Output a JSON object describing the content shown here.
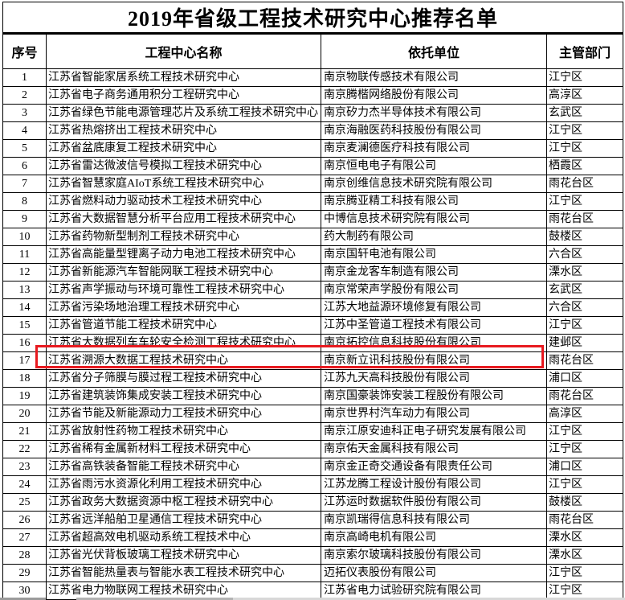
{
  "title": "2019年省级工程技术研究中心推荐名单",
  "columns": [
    "序号",
    "工程中心名称",
    "依托单位",
    "主管部门"
  ],
  "highlight": {
    "row_no": "17",
    "color": "#e8191f"
  },
  "rows": [
    {
      "no": "1",
      "name": "江苏省智能家居系统工程技术研究中心",
      "unit": "南京物联传感技术有限公司",
      "dept": "江宁区"
    },
    {
      "no": "2",
      "name": "江苏省电子商务通用积分工程研究中心",
      "unit": "南京腾楷网络股份有限公司",
      "dept": "高淳区"
    },
    {
      "no": "3",
      "name": "江苏省绿色节能电源管理芯片及系统工程技术研究中心",
      "unit": "南京矽力杰半导体技术有限公司",
      "dept": "玄武区"
    },
    {
      "no": "4",
      "name": "江苏省热熔挤出工程技术研究中心",
      "unit": "南京海融医药科技股份有限公司",
      "dept": "江宁区"
    },
    {
      "no": "5",
      "name": "江苏省盆底康复工程技术研究中心",
      "unit": "南京麦澜德医疗科技有限公司",
      "dept": "江宁区"
    },
    {
      "no": "6",
      "name": "江苏省雷达微波信号模拟工程技术研究中心",
      "unit": "南京恒电电子有限公司",
      "dept": "栖霞区"
    },
    {
      "no": "7",
      "name": "江苏省智慧家庭AIoT系统工程技术研究中心",
      "unit": "南京创维信息技术研究院有限公司",
      "dept": "雨花台区"
    },
    {
      "no": "8",
      "name": "江苏省燃料动力驱动技术工程技术研究中心",
      "unit": "南京腾亚精工科技有限公司",
      "dept": "江宁区"
    },
    {
      "no": "9",
      "name": "江苏省大数据智慧分析平台应用工程技术研究中心",
      "unit": "中博信息技术研究院有限公司",
      "dept": "雨花台区"
    },
    {
      "no": "10",
      "name": "江苏省药物新型制剂工程技术研究中心",
      "unit": "药大制药有限公司",
      "dept": "鼓楼区"
    },
    {
      "no": "11",
      "name": "江苏省高能量型锂离子动力电池工程技术研究中心",
      "unit": "南京国轩电池有限公司",
      "dept": "六合区"
    },
    {
      "no": "12",
      "name": "江苏省新能源汽车智能网联工程技术研究中心",
      "unit": "南京金龙客车制造有限公司",
      "dept": "溧水区"
    },
    {
      "no": "13",
      "name": "江苏省声学振动与环境可靠性工程技术研究中心",
      "unit": "南京常荣声学股份有限公司",
      "dept": "玄武区"
    },
    {
      "no": "14",
      "name": "江苏省污染场地治理工程技术研究中心",
      "unit": "江苏大地益源环境修复有限公司",
      "dept": "六合区"
    },
    {
      "no": "15",
      "name": "江苏省管道节能工程技术研究中心",
      "unit": "江苏中圣管道工程技术有限公司",
      "dept": "江宁区"
    },
    {
      "no": "16",
      "name": "江苏省大数据列车车轮安全检测工程技术研究中心",
      "unit": "南京拓控信息科技股份有限公司",
      "dept": "建邺区"
    },
    {
      "no": "17",
      "name": "江苏省溯源大数据工程技术研究中心",
      "unit": "南京新立讯科技股份有限公司",
      "dept": "雨花台区"
    },
    {
      "no": "18",
      "name": "江苏省分子筛膜与膜过程工程技术研究中心",
      "unit": "江苏九天高科技股份有限公司",
      "dept": "浦口区"
    },
    {
      "no": "19",
      "name": "江苏省建筑装饰集成安装工程技术研究中心",
      "unit": "南京国豪装饰安装工程股份有限公司",
      "dept": "雨花台区"
    },
    {
      "no": "20",
      "name": "江苏省节能及新能源动力工程技术研究中心",
      "unit": "南京世界村汽车动力有限公司",
      "dept": "高淳区"
    },
    {
      "no": "21",
      "name": "江苏省放射性药物工程技术研究中心",
      "unit": "南京江原安迪科正电子研究发展有限公司",
      "dept": "江宁区"
    },
    {
      "no": "22",
      "name": "江苏省稀有金属新材料工程技术研究中心",
      "unit": "南京佑天金属科技有限公司",
      "dept": "江宁区"
    },
    {
      "no": "23",
      "name": "江苏省高铁装备智能工程技术研究中心",
      "unit": "南京金正奇交通设备有限责任公司",
      "dept": "浦口区"
    },
    {
      "no": "24",
      "name": "江苏省雨污水资源化利用工程技术研究中心",
      "unit": "江苏龙腾工程设计股份有限公司",
      "dept": "江宁区"
    },
    {
      "no": "25",
      "name": "江苏省政务大数据资源中枢工程技术研究中心",
      "unit": "江苏运时数据软件股份有限公司",
      "dept": "鼓楼区"
    },
    {
      "no": "26",
      "name": "江苏省远洋船舶卫星通信工程技术研究中心",
      "unit": "南京凯瑞得信息科技有限公司",
      "dept": "雨花台区"
    },
    {
      "no": "27",
      "name": "江苏省超高效电机驱动系统工程技术中心",
      "unit": "南京高崎电机有限公司",
      "dept": "溧水区"
    },
    {
      "no": "28",
      "name": "江苏省光伏背板玻璃工程技术研究中心",
      "unit": "南京索尔玻璃科技股份有限公司",
      "dept": "溧水区"
    },
    {
      "no": "29",
      "name": "江苏省智能热量表与智能水表工程技术研究中心",
      "unit": "迈拓仪表股份有限公司",
      "dept": "江宁区"
    },
    {
      "no": "30",
      "name": "江苏省电力物联网工程技术研究中心",
      "unit": "江苏省电力试验研究院有限公司",
      "dept": "江宁区"
    }
  ]
}
